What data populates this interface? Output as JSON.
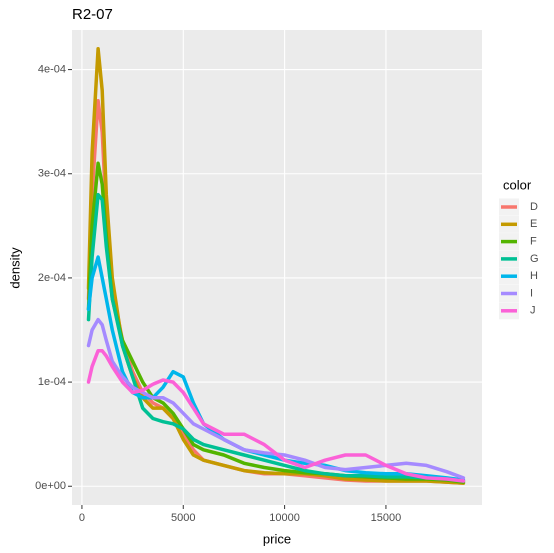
{
  "chart_data": {
    "type": "line",
    "title": "R2-07",
    "x_label": "price",
    "y_label": "density",
    "legend_title": "color",
    "grid": true,
    "line_width": 3.5,
    "xlim": [
      -490,
      19740
    ],
    "xticks": [
      0,
      5000,
      10000,
      15000
    ],
    "ylim": [
      -1.8e-05,
      0.000438
    ],
    "yticks": [
      {
        "value": 0,
        "label": "0e+00"
      },
      {
        "value": 0.0001,
        "label": "1e-04"
      },
      {
        "value": 0.0002,
        "label": "2e-04"
      },
      {
        "value": 0.0003,
        "label": "3e-04"
      },
      {
        "value": 0.0004,
        "label": "4e-04"
      }
    ],
    "x": [
      326,
      500,
      800,
      1000,
      1200,
      1500,
      2000,
      2500,
      3000,
      3500,
      4000,
      4500,
      5000,
      5500,
      6000,
      7000,
      8000,
      9000,
      10000,
      11000,
      12000,
      13000,
      14000,
      15000,
      16000,
      17000,
      18000,
      18823
    ],
    "series": [
      {
        "name": "D",
        "color": "#F8766D",
        "values": [
          0.00018,
          0.00028,
          0.00037,
          0.00034,
          0.00026,
          0.00019,
          0.00014,
          0.00011,
          9e-05,
          8e-05,
          7.5e-05,
          6.5e-05,
          5e-05,
          3.5e-05,
          2.5e-05,
          2e-05,
          1.5e-05,
          1.2e-05,
          1.2e-05,
          1e-05,
          8e-06,
          6e-06,
          5e-06,
          5e-06,
          5e-06,
          5e-06,
          4e-06,
          3e-06
        ]
      },
      {
        "name": "E",
        "color": "#C49A00",
        "values": [
          0.00019,
          0.00032,
          0.00042,
          0.00038,
          0.00028,
          0.0002,
          0.000135,
          0.000105,
          8.5e-05,
          7.5e-05,
          7.5e-05,
          6.5e-05,
          4.5e-05,
          3e-05,
          2.5e-05,
          2e-05,
          1.5e-05,
          1.3e-05,
          1.2e-05,
          1.2e-05,
          1e-05,
          7e-06,
          6e-06,
          5e-06,
          5e-06,
          5e-06,
          4e-06,
          3e-06
        ]
      },
      {
        "name": "F",
        "color": "#53B400",
        "values": [
          0.00017,
          0.00025,
          0.00031,
          0.00029,
          0.00024,
          0.00018,
          0.00014,
          0.00012,
          0.0001,
          8.5e-05,
          8e-05,
          7e-05,
          5.5e-05,
          4e-05,
          3.5e-05,
          3e-05,
          2.2e-05,
          1.8e-05,
          1.5e-05,
          1.3e-05,
          1.2e-05,
          1e-05,
          9e-06,
          8e-06,
          7e-06,
          7e-06,
          6e-06,
          4e-06
        ]
      },
      {
        "name": "G",
        "color": "#00C094",
        "values": [
          0.00016,
          0.00022,
          0.00028,
          0.000275,
          0.00023,
          0.00018,
          0.000135,
          0.000105,
          7.5e-05,
          6.5e-05,
          6.2e-05,
          6e-05,
          5.5e-05,
          4.5e-05,
          4e-05,
          3.5e-05,
          3e-05,
          2.5e-05,
          2e-05,
          1.5e-05,
          1.2e-05,
          1e-05,
          1e-05,
          9e-06,
          9e-06,
          8e-06,
          7e-06,
          5e-06
        ]
      },
      {
        "name": "H",
        "color": "#00B6EB",
        "values": [
          0.00017,
          0.0002,
          0.00022,
          0.0002,
          0.00018,
          0.00015,
          0.00011,
          9e-05,
          8.5e-05,
          8.5e-05,
          9.5e-05,
          0.00011,
          0.000105,
          8e-05,
          6e-05,
          4.5e-05,
          3.5e-05,
          3e-05,
          2.5e-05,
          2.2e-05,
          2e-05,
          1.5e-05,
          1.3e-05,
          1.2e-05,
          1.2e-05,
          1e-05,
          8e-06,
          6e-06
        ]
      },
      {
        "name": "I",
        "color": "#A58AFF",
        "values": [
          0.000135,
          0.00015,
          0.00016,
          0.000155,
          0.00014,
          0.00012,
          0.000105,
          9.5e-05,
          9e-05,
          8.5e-05,
          8.5e-05,
          8e-05,
          7e-05,
          6e-05,
          5.5e-05,
          4.5e-05,
          3.5e-05,
          3.2e-05,
          3e-05,
          2.5e-05,
          1.8e-05,
          1.6e-05,
          1.8e-05,
          2e-05,
          2.2e-05,
          2e-05,
          1.4e-05,
          8e-06
        ]
      },
      {
        "name": "J",
        "color": "#FB61D7",
        "values": [
          0.0001,
          0.000115,
          0.00013,
          0.00013,
          0.000125,
          0.000115,
          0.0001,
          9e-05,
          9.2e-05,
          9.8e-05,
          0.000102,
          0.0001,
          9e-05,
          7.5e-05,
          6e-05,
          5e-05,
          5e-05,
          4e-05,
          2.5e-05,
          1.8e-05,
          2.5e-05,
          3e-05,
          3e-05,
          2e-05,
          1.2e-05,
          8e-06,
          7e-06,
          5e-06
        ]
      }
    ]
  }
}
